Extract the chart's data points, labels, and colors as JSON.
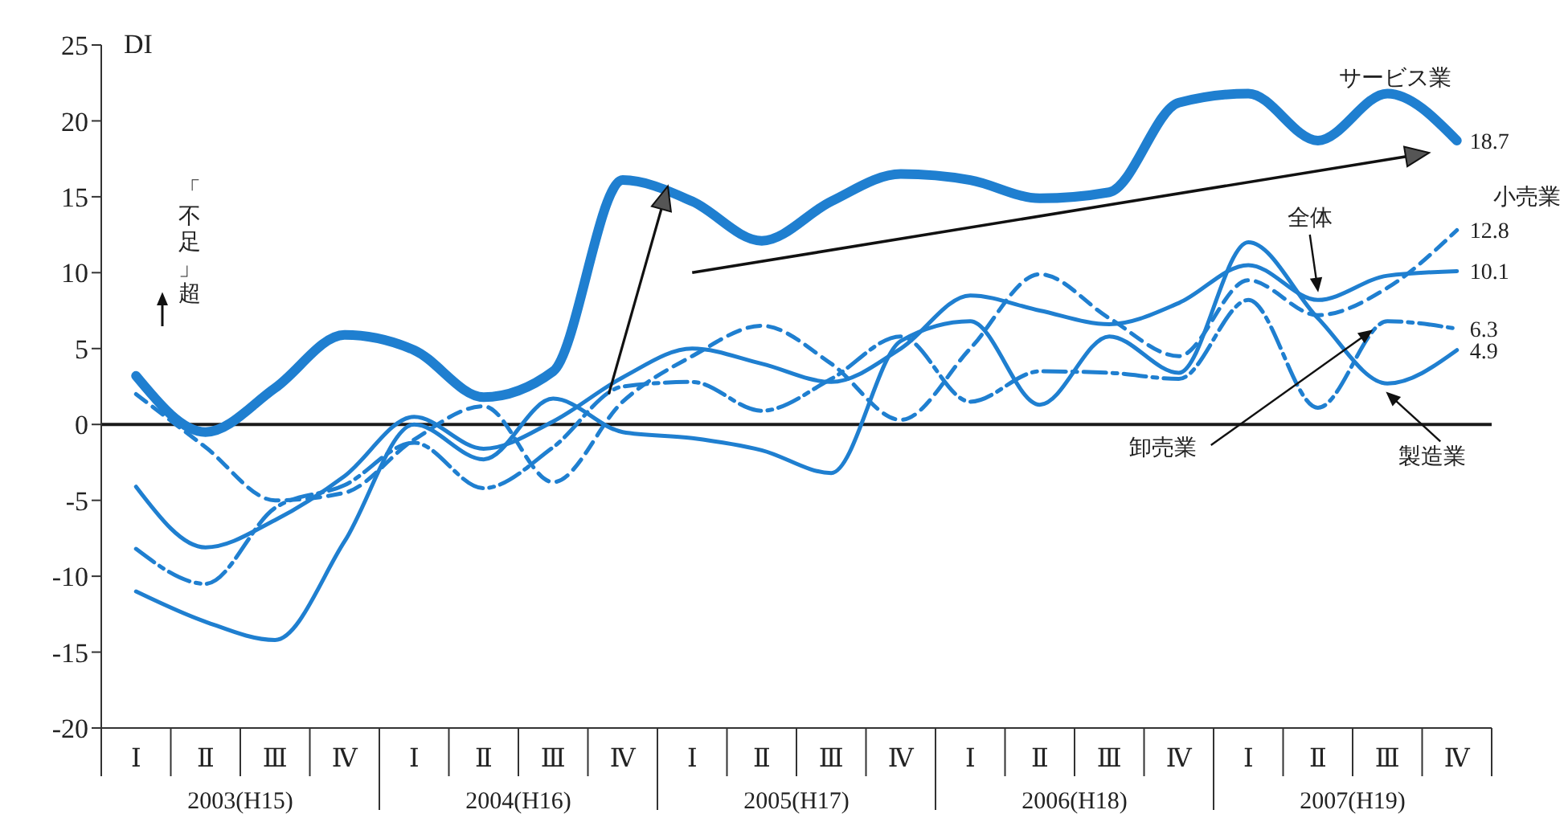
{
  "chart_data": {
    "type": "line",
    "ylabel": "DI",
    "categories": [
      "Ⅰ",
      "Ⅱ",
      "Ⅲ",
      "Ⅳ",
      "Ⅰ",
      "Ⅱ",
      "Ⅲ",
      "Ⅳ",
      "Ⅰ",
      "Ⅱ",
      "Ⅲ",
      "Ⅳ",
      "Ⅰ",
      "Ⅱ",
      "Ⅲ",
      "Ⅳ",
      "Ⅰ",
      "Ⅱ",
      "Ⅲ",
      "Ⅳ"
    ],
    "ylim": [
      -20,
      25
    ],
    "yticks": [
      -20,
      -15,
      -10,
      -5,
      0,
      5,
      10,
      15,
      20,
      25
    ],
    "ref_lines": [
      {
        "axis": "y",
        "value": 0,
        "color": "#1a1a1a"
      }
    ],
    "annotations": [
      "2003(H15)",
      "2004(H16)",
      "2005(H17)",
      "2006(H18)",
      "2007(H19)",
      "「不足」超"
    ],
    "series": [
      {
        "name": "サービス業",
        "color": "#1f7fd0",
        "line_style": "solid",
        "values": [
          3.2,
          -0.5,
          2.4,
          5.9,
          4.9,
          1.8,
          3.5,
          16.1,
          14.7,
          12.1,
          14.7,
          16.5,
          16.1,
          14.9,
          15.3,
          21.2,
          21.8,
          18.7,
          21.8,
          18.7
        ],
        "value_labels": [
          null,
          null,
          null,
          null,
          null,
          null,
          null,
          null,
          null,
          null,
          null,
          null,
          null,
          null,
          null,
          null,
          null,
          null,
          null,
          "18.7"
        ]
      },
      {
        "name": "全体",
        "color": "#1f7fd0",
        "line_style": "solid",
        "values": [
          -4.1,
          -8.1,
          -6.3,
          -3.4,
          0.5,
          -1.6,
          0.2,
          3.1,
          5.0,
          4.0,
          2.8,
          5.0,
          8.5,
          7.5,
          6.6,
          8.0,
          10.5,
          8.2,
          9.8,
          10.1
        ],
        "value_labels": [
          null,
          null,
          null,
          null,
          null,
          null,
          null,
          null,
          null,
          null,
          null,
          null,
          null,
          null,
          null,
          null,
          null,
          null,
          null,
          "10.1"
        ]
      },
      {
        "name": "小売業",
        "color": "#1f7fd0",
        "line_style": "dashed",
        "values": [
          2.0,
          -1.5,
          -5.0,
          -4.5,
          -1.0,
          1.2,
          -3.8,
          1.5,
          4.5,
          6.5,
          4.0,
          0.3,
          5.0,
          9.9,
          7.0,
          4.5,
          9.5,
          7.2,
          9.0,
          12.8
        ],
        "value_labels": [
          null,
          null,
          null,
          null,
          null,
          null,
          null,
          null,
          null,
          null,
          null,
          null,
          null,
          null,
          null,
          null,
          null,
          null,
          null,
          "12.8"
        ]
      },
      {
        "name": "卸売業",
        "color": "#1f7fd0",
        "line_style": "dashdot",
        "values": [
          -8.2,
          -10.5,
          -5.5,
          -4.0,
          -1.2,
          -4.2,
          -1.5,
          2.5,
          2.8,
          0.9,
          3.0,
          5.8,
          1.5,
          3.5,
          3.4,
          3.0,
          8.2,
          1.1,
          6.8,
          6.3
        ],
        "value_labels": [
          null,
          null,
          null,
          null,
          null,
          null,
          null,
          null,
          null,
          null,
          null,
          null,
          null,
          null,
          null,
          null,
          null,
          null,
          null,
          "6.3"
        ]
      },
      {
        "name": "製造業",
        "color": "#1f7fd0",
        "line_style": "solid",
        "values": [
          -11.0,
          -13.0,
          -14.2,
          -7.7,
          0.0,
          -2.3,
          1.7,
          -0.5,
          -0.9,
          -1.7,
          -3.2,
          5.5,
          6.8,
          1.3,
          5.8,
          3.4,
          12.0,
          7.0,
          2.7,
          4.9
        ],
        "value_labels": [
          null,
          null,
          null,
          null,
          null,
          null,
          null,
          null,
          null,
          null,
          null,
          null,
          null,
          null,
          null,
          null,
          null,
          null,
          null,
          "4.9"
        ]
      }
    ]
  }
}
